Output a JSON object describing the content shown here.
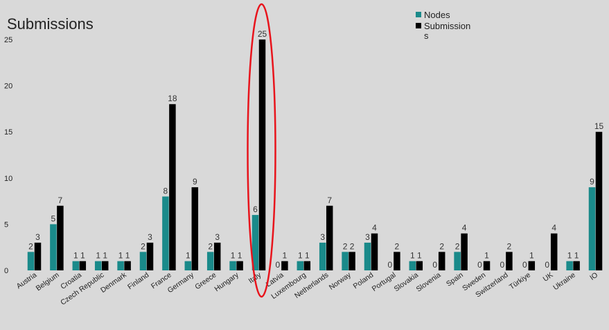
{
  "chart_data": {
    "type": "bar",
    "title": "Submissions",
    "xlabel": "",
    "ylabel": "",
    "ylim": [
      0,
      25
    ],
    "yticks": [
      "0",
      "5",
      "10",
      "15",
      "20",
      "25"
    ],
    "grid": false,
    "legend_position": "top-right",
    "categories": [
      "Austria",
      "Belgium",
      "Croatia",
      "Czech Republic",
      "Denmark",
      "Finland",
      "France",
      "Germany",
      "Greece",
      "Hungary",
      "Italy",
      "Latvia",
      "Luxembourg",
      "Netherlands",
      "Norway",
      "Poland",
      "Portugal",
      "Slovakia",
      "Slovenia",
      "Spain",
      "Sweden",
      "Switzerland",
      "Türkiye",
      "UK",
      "Ukraine",
      "IO"
    ],
    "series": [
      {
        "name": "Nodes",
        "color": "#1a8a8a",
        "values": [
          2,
          5,
          1,
          1,
          1,
          2,
          8,
          1,
          2,
          1,
          6,
          0,
          1,
          3,
          2,
          3,
          0,
          1,
          0,
          2,
          0,
          0,
          0,
          0,
          1,
          9
        ],
        "labels": [
          "2",
          "5",
          "1",
          "1",
          "1",
          "2",
          "8",
          "1",
          "2",
          "1",
          "6",
          "0",
          "1",
          "3",
          "2",
          "3",
          "0",
          "1",
          "0",
          "2",
          "0",
          "0",
          "0",
          "0",
          "1",
          "9"
        ]
      },
      {
        "name": "Submission\ns",
        "color": "#000000",
        "values": [
          3,
          7,
          1,
          1,
          1,
          3,
          18,
          9,
          3,
          1,
          25,
          1,
          1,
          7,
          2,
          4,
          2,
          1,
          2,
          4,
          1,
          2,
          1,
          4,
          1,
          15
        ],
        "labels": [
          "3",
          "7",
          "1",
          "1",
          "1",
          "3",
          "18",
          "9",
          "3",
          "1",
          "25",
          "1",
          "1",
          "7",
          "2",
          "4",
          "2",
          "1",
          "2",
          "4",
          "1",
          "2",
          "1",
          "4",
          "1",
          "15"
        ]
      }
    ],
    "highlight": {
      "shape": "ellipse",
      "color": "#e8141c",
      "category": "Italy"
    }
  }
}
